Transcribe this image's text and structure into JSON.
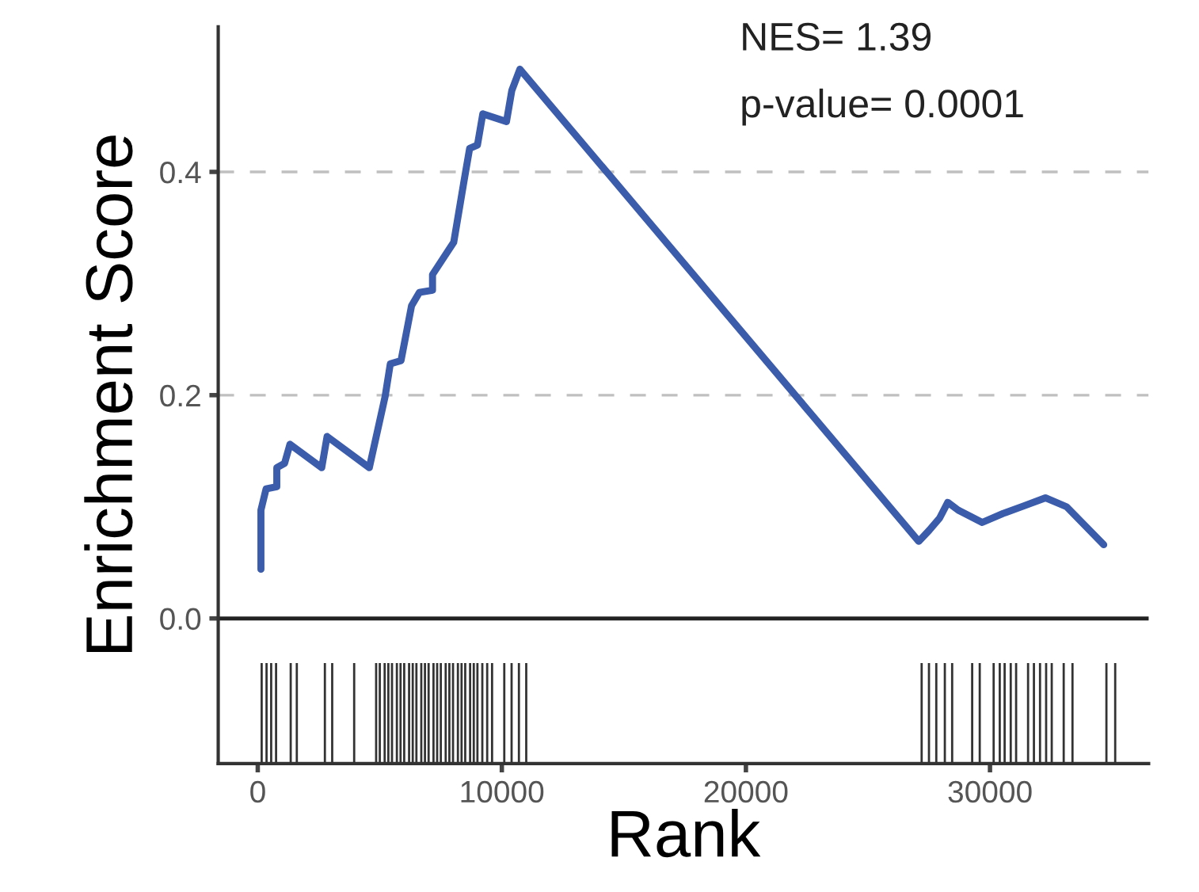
{
  "chart_data": {
    "type": "line",
    "xlabel": "Rank",
    "ylabel": "Enrichment Score",
    "annotations": [
      "NES= 1.39",
      "p-value= 0.0001"
    ],
    "xlim": [
      -1620,
      36500
    ],
    "ylim": [
      -0.13,
      0.53
    ],
    "xticks": [
      0,
      10000,
      20000,
      30000
    ],
    "yticks": [
      {
        "value": 0,
        "label": "0.0"
      },
      {
        "value": 0.2,
        "label": "0.2"
      },
      {
        "value": 0.4,
        "label": "0.4"
      }
    ],
    "grid": "y",
    "line_style": "solid",
    "ref_lines": [
      {
        "axis": "y",
        "value": 0,
        "label": null,
        "color": "#222222",
        "line_style": "solid"
      }
    ],
    "series": [
      {
        "color": "#3b5bab",
        "x": [
          130,
          130,
          340,
          780,
          780,
          1100,
          1320,
          2620,
          2840,
          4570,
          5220,
          5430,
          5870,
          6300,
          6620,
          7160,
          7160,
          8030,
          8460,
          8680,
          9000,
          9220,
          10190,
          10410,
          10740,
          27080,
          27510,
          27940,
          28270,
          28700,
          29680,
          30540,
          31410,
          32270,
          33140,
          34660
        ],
        "values": [
          0.044,
          0.097,
          0.116,
          0.118,
          0.135,
          0.139,
          0.156,
          0.135,
          0.163,
          0.135,
          0.199,
          0.228,
          0.231,
          0.28,
          0.292,
          0.294,
          0.308,
          0.337,
          0.393,
          0.421,
          0.424,
          0.452,
          0.445,
          0.473,
          0.492,
          0.069,
          0.079,
          0.09,
          0.104,
          0.097,
          0.086,
          0.094,
          0.101,
          0.108,
          0.1,
          0.066
        ]
      },
      {
        "type": "bar",
        "color": "#333333",
        "x": [
          160,
          360,
          550,
          750,
          1350,
          1600,
          2750,
          3050,
          3950,
          4850,
          5000,
          5200,
          5350,
          5500,
          5700,
          5850,
          6000,
          6200,
          6350,
          6500,
          6700,
          6850,
          7000,
          7200,
          7350,
          7500,
          7700,
          7850,
          8000,
          8200,
          8350,
          8500,
          8700,
          8850,
          9000,
          9200,
          9400,
          9600,
          10100,
          10400,
          10700,
          11000,
          27200,
          27500,
          27800,
          28150,
          28450,
          29270,
          29580,
          30150,
          30400,
          30600,
          30850,
          31070,
          31560,
          31800,
          32050,
          32300,
          32530,
          33020,
          33380,
          34770,
          35130
        ],
        "base": [
          -0.13,
          -0.13,
          -0.13,
          -0.13,
          -0.13,
          -0.13,
          -0.13,
          -0.13,
          -0.13,
          -0.13,
          -0.13,
          -0.13,
          -0.13,
          -0.13,
          -0.13,
          -0.13,
          -0.13,
          -0.13,
          -0.13,
          -0.13,
          -0.13,
          -0.13,
          -0.13,
          -0.13,
          -0.13,
          -0.13,
          -0.13,
          -0.13,
          -0.13,
          -0.13,
          -0.13,
          -0.13,
          -0.13,
          -0.13,
          -0.13,
          -0.13,
          -0.13,
          -0.13,
          -0.13,
          -0.13,
          -0.13,
          -0.13,
          -0.13,
          -0.13,
          -0.13,
          -0.13,
          -0.13,
          -0.13,
          -0.13,
          -0.13,
          -0.13,
          -0.13,
          -0.13,
          -0.13,
          -0.13,
          -0.13,
          -0.13,
          -0.13,
          -0.13,
          -0.13,
          -0.13,
          -0.13,
          -0.13
        ],
        "values": [
          0.09,
          0.09,
          0.09,
          0.09,
          0.09,
          0.09,
          0.09,
          0.09,
          0.09,
          0.09,
          0.09,
          0.09,
          0.09,
          0.09,
          0.09,
          0.09,
          0.09,
          0.09,
          0.09,
          0.09,
          0.09,
          0.09,
          0.09,
          0.09,
          0.09,
          0.09,
          0.09,
          0.09,
          0.09,
          0.09,
          0.09,
          0.09,
          0.09,
          0.09,
          0.09,
          0.09,
          0.09,
          0.09,
          0.09,
          0.09,
          0.09,
          0.09,
          0.09,
          0.09,
          0.09,
          0.09,
          0.09,
          0.09,
          0.09,
          0.09,
          0.09,
          0.09,
          0.09,
          0.09,
          0.09,
          0.09,
          0.09,
          0.09,
          0.09,
          0.09,
          0.09,
          0.09,
          0.09
        ]
      }
    ]
  }
}
